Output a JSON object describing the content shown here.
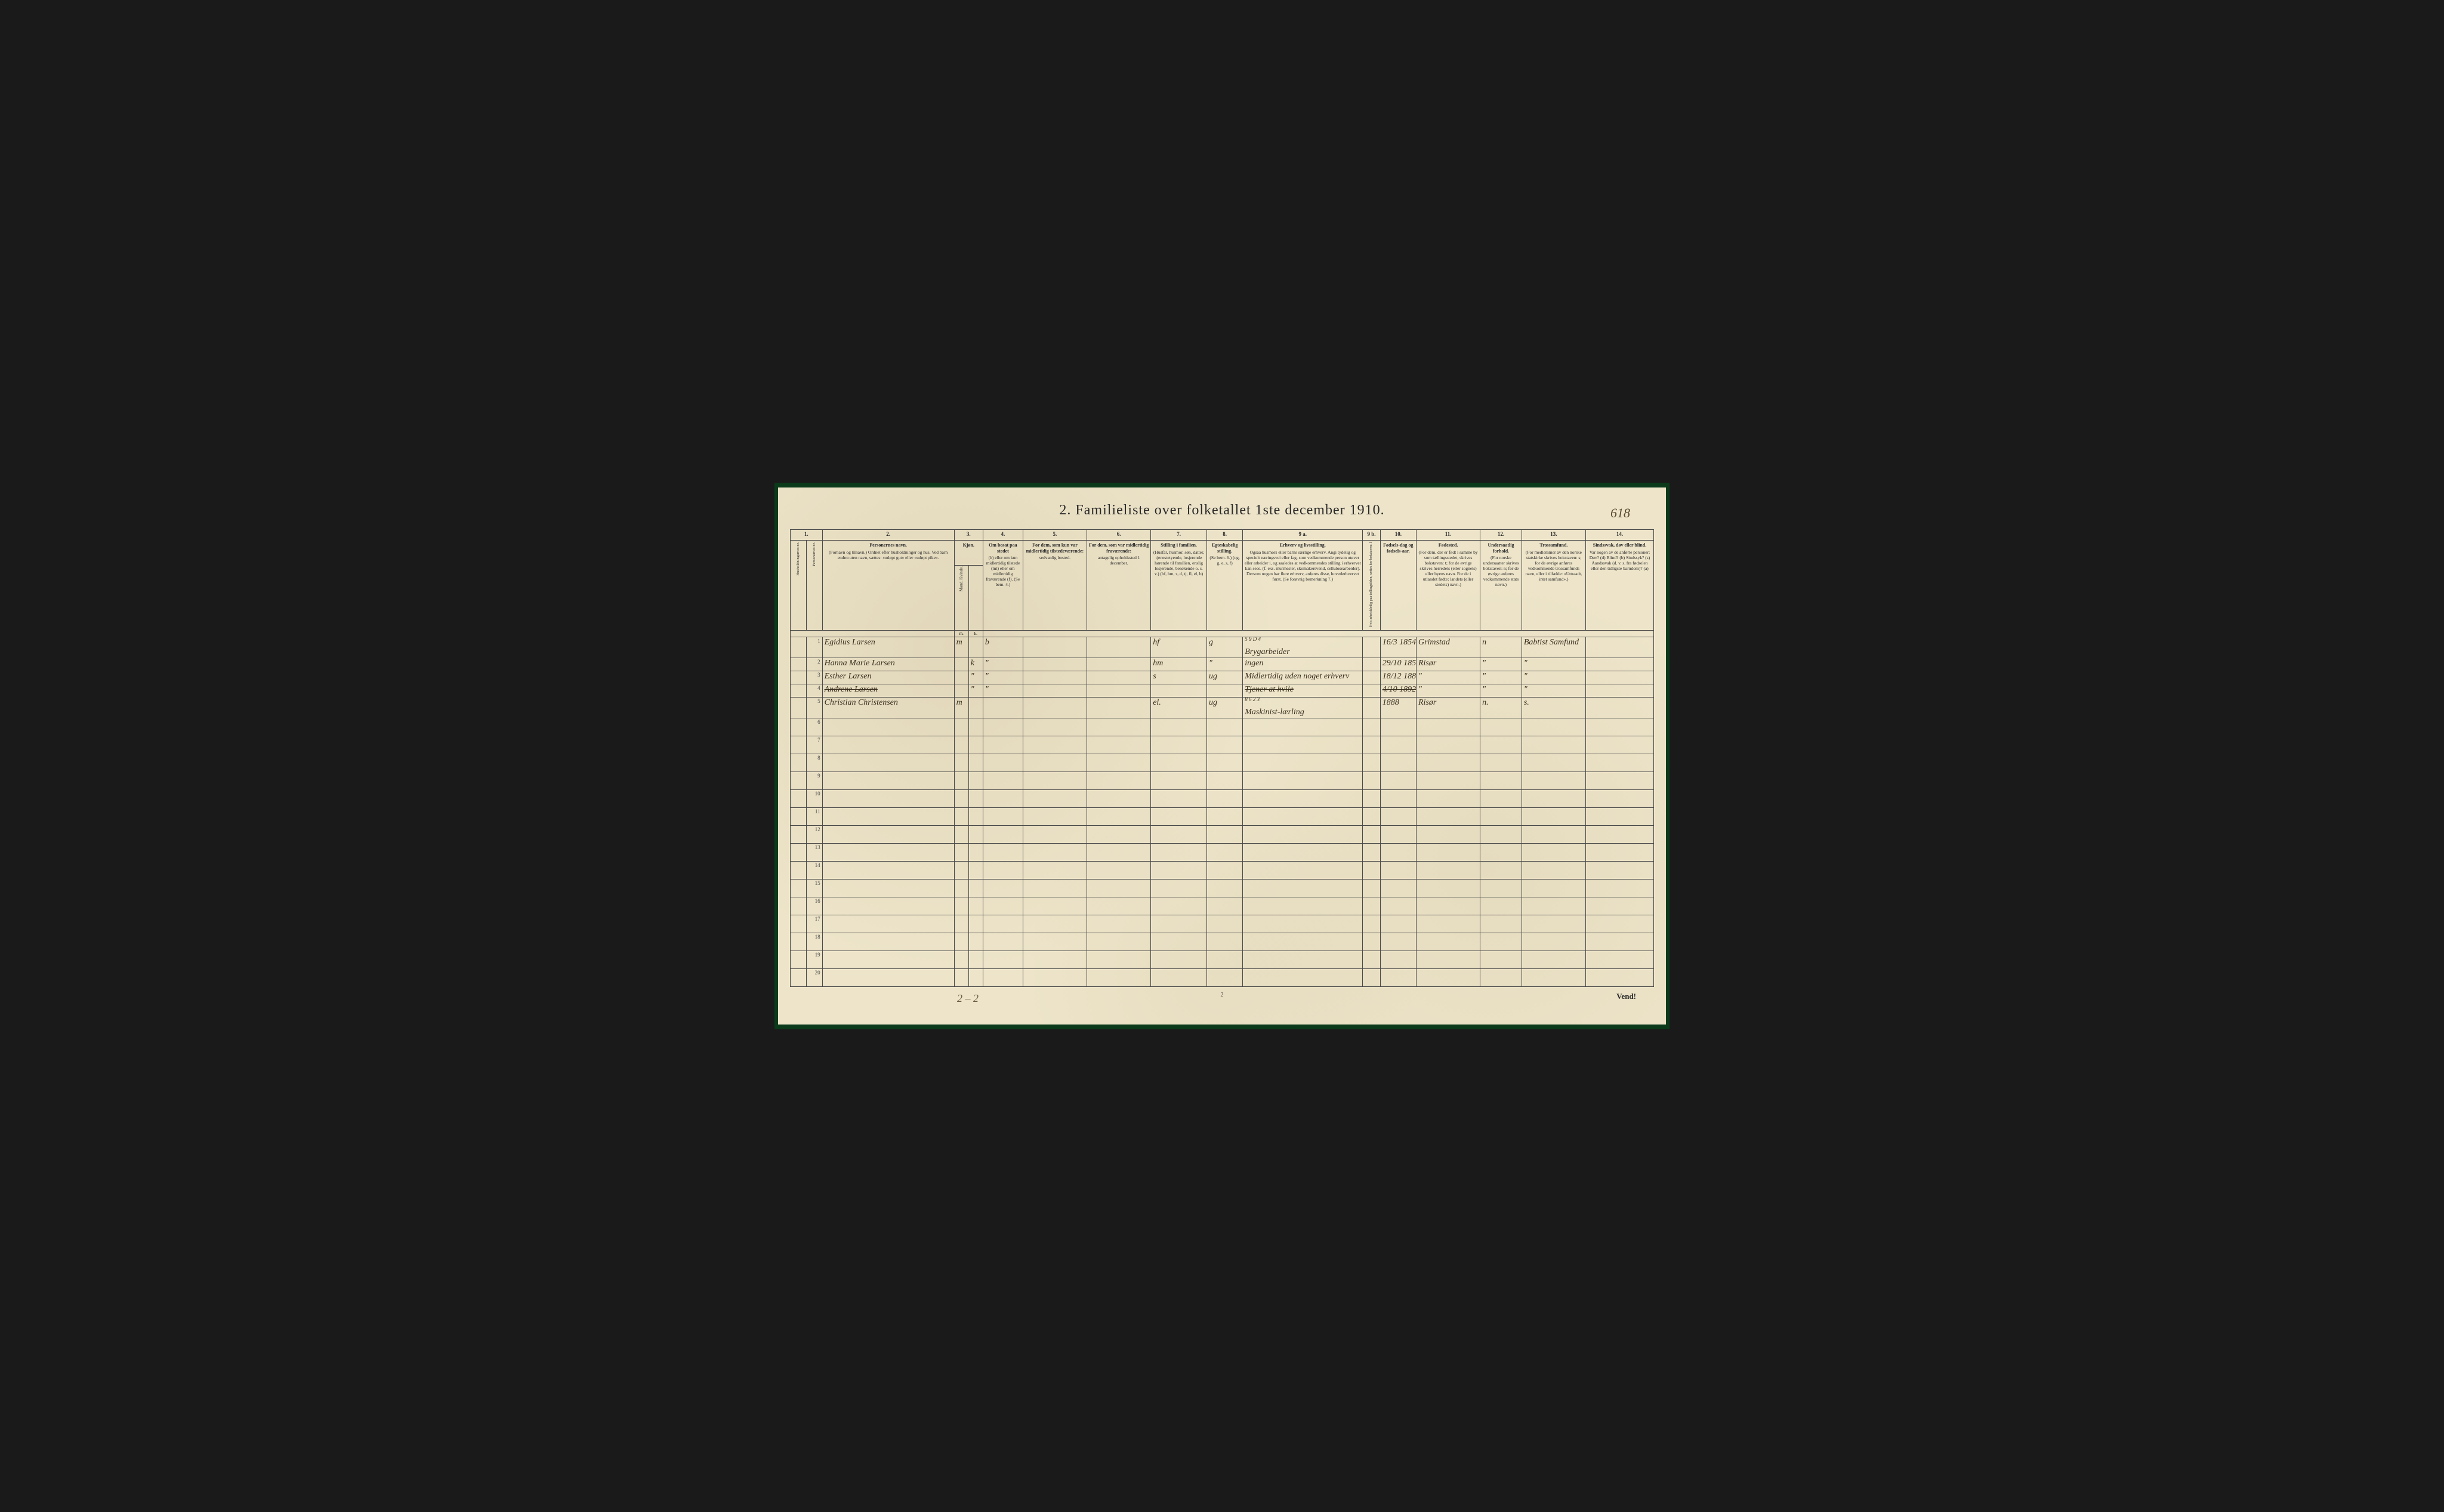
{
  "page_number_handwritten": "618",
  "title": "2.  Familieliste over folketallet 1ste december 1910.",
  "column_numbers": [
    "1.",
    "2.",
    "3.",
    "4.",
    "5.",
    "6.",
    "7.",
    "8.",
    "9 a.",
    "9 b.",
    "10.",
    "11.",
    "12.",
    "13.",
    "14."
  ],
  "headers": {
    "col1": {
      "title": "Husholdningernes nr.",
      "desc": ""
    },
    "col1b": {
      "title": "Personernes nr.",
      "desc": ""
    },
    "col2": {
      "title": "Personernes navn.",
      "desc": "(Fornavn og tilnavn.) Ordnet efter husholdninger og hus. Ved barn endnu uten navn, sættes: «udøpt gut» eller «udøpt pike»."
    },
    "col3": {
      "title": "Kjøn.",
      "desc": "Mand. Kvinde."
    },
    "col3_sub_m": "m.",
    "col3_sub_k": "k.",
    "col4": {
      "title": "Om bosat paa stedet",
      "desc": "(b) eller om kun midlertidig tilstede (mt) eller om midlertidig fraværende (f). (Se bem. 4.)"
    },
    "col5": {
      "title": "For dem, som kun var midlertidig tilstedeværende:",
      "desc": "sedvanlig bosted."
    },
    "col6": {
      "title": "For dem, som var midlertidig fraværende:",
      "desc": "antagelig opholdssted 1 december."
    },
    "col7": {
      "title": "Stilling i familien.",
      "desc": "(Husfar, husmor, søn, datter, tjenestetyende, losjerende hørende til familien, enslig losjerende, besøkende o. s. v.) (hf, hm, s, d, tj, fl, el, b)"
    },
    "col8": {
      "title": "Egteskabelig stilling.",
      "desc": "(Se bem. 6.) (ug, g, e, s, f)"
    },
    "col9a": {
      "title": "Erhverv og livsstilling.",
      "desc": "Ogsaa husmors eller barns særlige erhverv. Angi tydelig og specielt næringsvei eller fag, som vedkommende person utøver eller arbeider i, og saaledes at vedkommendes stilling i erhvervet kan sees. (f. eks. murmester, skomakersvend, cellulosearbeider). Dersom nogen har flere erhverv, anføres disse, hovederhvervet først. (Se forøvrig bemerkning 7.)"
    },
    "col9b": {
      "title": "",
      "desc": "Hvis arbeidsledig paa tællingstiden, sættes her bokstaven: l"
    },
    "col10": {
      "title": "Fødsels-dag og fødsels-aar.",
      "desc": ""
    },
    "col11": {
      "title": "Fødested.",
      "desc": "(For dem, der er født i samme by som tællingsstedet, skrives bokstaven: t; for de øvrige skrives herredets (eller sognets) eller byens navn. For de i utlandet fødte: landets (eller stedets) navn.)"
    },
    "col12": {
      "title": "Undersaatlig forhold.",
      "desc": "(For norske undersaatter skrives bokstaven: n; for de øvrige anføres vedkommende stats navn.)"
    },
    "col13": {
      "title": "Trossamfund.",
      "desc": "(For medlemmer av den norske statskirke skrives bokstaven: s; for de øvrige anføres vedkommende trossamfunds navn, eller i tilfælde: «Uttraadt, intet samfund».)"
    },
    "col14": {
      "title": "Sindssvak, døv eller blind.",
      "desc": "Var nogen av de anførte personer: Døv? (d) Blind? (b) Sindssyk? (s) Aandssvak (d. v. s. fra fødselen eller den tidligste barndom)? (a)"
    }
  },
  "rows": [
    {
      "num": "1",
      "name": "Egidius Larsen",
      "sex": "m",
      "bosat": "b",
      "col5": "",
      "col6": "",
      "stilling": "hf",
      "egte": "g",
      "erhverv": "Brygarbeider",
      "col9b": "",
      "fodsel": "16/3 1854",
      "fodested": "Grimstad",
      "under": "n",
      "tros": "Babtist Samfund",
      "col14": ""
    },
    {
      "num": "2",
      "name": "Hanna Marie Larsen",
      "sex": "k",
      "bosat": "\"",
      "col5": "",
      "col6": "",
      "stilling": "hm",
      "egte": "\"",
      "erhverv": "ingen",
      "col9b": "",
      "fodsel": "29/10 1853",
      "fodested": "Risør",
      "under": "\"",
      "tros": "\"",
      "col14": ""
    },
    {
      "num": "3",
      "name": "Esther Larsen",
      "sex": "\"",
      "bosat": "\"",
      "col5": "",
      "col6": "",
      "stilling": "s",
      "egte": "ug",
      "erhverv": "Midlertidig uden noget erhverv",
      "col9b": "",
      "fodsel": "18/12 1889",
      "fodested": "\"",
      "under": "\"",
      "tros": "\"",
      "col14": ""
    },
    {
      "num": "4",
      "name": "Andrene Larsen",
      "name_strike": true,
      "sex": "\"",
      "bosat": "\"",
      "col5": "",
      "col6": "",
      "stilling": "",
      "egte": "",
      "erhverv": "Tjener at hvile",
      "erhverv_strike": true,
      "col9b": "",
      "fodsel": "4/10 1892",
      "fodsel_strike": true,
      "fodested": "\"",
      "under": "\"",
      "tros": "\"",
      "col14": ""
    },
    {
      "num": "5",
      "name": "Christian Christensen",
      "sex": "m",
      "bosat": "",
      "col5": "",
      "col6": "",
      "stilling": "el.",
      "egte": "ug",
      "erhverv": "Maskinist-lærling",
      "col9b": "",
      "fodsel": "1888",
      "fodested": "Risør",
      "under": "n.",
      "tros": "s.",
      "col14": ""
    }
  ],
  "erhverv_note_row1": "5 9 D 4",
  "erhverv_note_row5": "8 6 2 3",
  "empty_row_count": 15,
  "bottom_scribble": "2 – 2",
  "bottom_center": "2",
  "bottom_right": "Vend!",
  "colors": {
    "paper": "#ede4c9",
    "border": "#4a4a4a",
    "text": "#2a2a2a",
    "handwriting": "#3a3020",
    "cover": "#0a3a1a",
    "background": "#1a1a1a"
  },
  "column_widths_pct": [
    2.0,
    2.0,
    16.5,
    1.8,
    1.8,
    5.0,
    8.0,
    8.0,
    7.0,
    4.5,
    15.0,
    2.2,
    4.5,
    8.0,
    5.2,
    8.0,
    8.5
  ]
}
